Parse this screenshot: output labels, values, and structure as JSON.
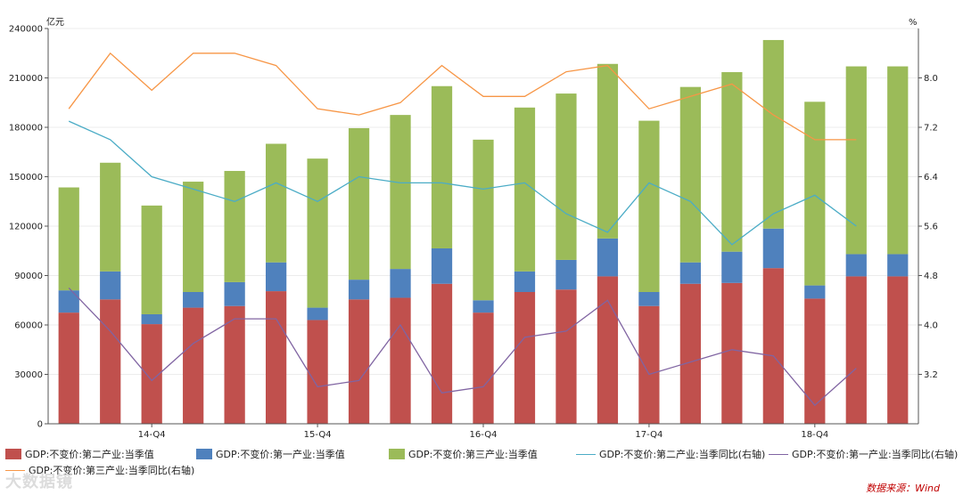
{
  "chart_data": {
    "type": "bar",
    "stacked": true,
    "categories": [
      "14-Q2",
      "14-Q3",
      "14-Q4",
      "15-Q1",
      "15-Q2",
      "15-Q3",
      "15-Q4",
      "16-Q1",
      "16-Q2",
      "16-Q3",
      "16-Q4",
      "17-Q1",
      "17-Q2",
      "17-Q3",
      "17-Q4",
      "18-Q1",
      "18-Q2",
      "18-Q3",
      "18-Q4",
      "19-Q1",
      "19-Q2"
    ],
    "x_tick_labels": [
      "14-Q4",
      "15-Q4",
      "16-Q4",
      "17-Q4",
      "18-Q4"
    ],
    "y_left": {
      "unit": "亿元",
      "ylim": [
        0,
        240000
      ],
      "ticks": [
        "0",
        "30000",
        "60000",
        "90000",
        "120000",
        "150000",
        "180000",
        "210000",
        "240000"
      ]
    },
    "y_right": {
      "unit": "%",
      "ticks": [
        "3.2",
        "4.0",
        "4.8",
        "5.6",
        "6.4",
        "7.2",
        "8.0"
      ],
      "ylim": [
        2.4,
        8.8
      ]
    },
    "series": [
      {
        "name": "GDP:不变价:第二产业:当季值",
        "kind": "bar",
        "axis": "left",
        "color": "#c0504d",
        "values": [
          67500,
          75500,
          60500,
          70500,
          71500,
          80500,
          63000,
          75500,
          76500,
          85000,
          67500,
          80000,
          81500,
          89500,
          71500,
          85000,
          85500,
          94500,
          76000,
          89500,
          89500
        ]
      },
      {
        "name": "GDP:不变价:第一产业:当季值",
        "kind": "bar",
        "axis": "left",
        "color": "#4f81bd",
        "values": [
          13500,
          17000,
          6000,
          9500,
          14500,
          17500,
          7500,
          12000,
          17500,
          21500,
          7500,
          12500,
          18000,
          23000,
          8500,
          13000,
          19000,
          24000,
          8000,
          13500,
          13500
        ]
      },
      {
        "name": "GDP:不变价:第三产业:当季值",
        "kind": "bar",
        "axis": "left",
        "color": "#9bbb59",
        "values": [
          62500,
          66000,
          66000,
          67000,
          67500,
          72000,
          90500,
          92000,
          93500,
          98500,
          97500,
          99500,
          101000,
          106000,
          104000,
          106500,
          109000,
          114500,
          111500,
          114000,
          114000
        ]
      },
      {
        "name": "GDP:不变价:第二产业:当季同比(右轴)",
        "kind": "line",
        "axis": "right",
        "color": "#4bacc6",
        "values": [
          7.3,
          7.0,
          6.4,
          6.2,
          6.0,
          6.3,
          6.0,
          6.4,
          6.3,
          6.3,
          6.2,
          6.3,
          5.8,
          5.5,
          6.3,
          6.0,
          5.3,
          5.8,
          6.1,
          5.6,
          null
        ]
      },
      {
        "name": "GDP:不变价:第一产业:当季同比(右轴)",
        "kind": "line",
        "axis": "right",
        "color": "#8064a2",
        "values": [
          4.6,
          3.9,
          3.1,
          3.7,
          4.1,
          4.1,
          3.0,
          3.1,
          4.0,
          2.9,
          3.0,
          3.8,
          3.9,
          4.4,
          3.2,
          3.4,
          3.6,
          3.5,
          2.7,
          3.3,
          null
        ]
      },
      {
        "name": "GDP:不变价:第三产业:当季同比(右轴)",
        "kind": "line",
        "axis": "right",
        "color": "#f79646",
        "values": [
          7.5,
          8.4,
          7.8,
          8.4,
          8.4,
          8.2,
          7.5,
          7.4,
          7.6,
          8.2,
          7.7,
          7.7,
          8.1,
          8.2,
          7.5,
          7.7,
          7.9,
          7.4,
          7.0,
          7.0,
          null
        ]
      }
    ],
    "legend_position": "bottom",
    "grid": "horizontal"
  },
  "source_text": "数据来源：Wind",
  "watermark_text": "大数据镜"
}
